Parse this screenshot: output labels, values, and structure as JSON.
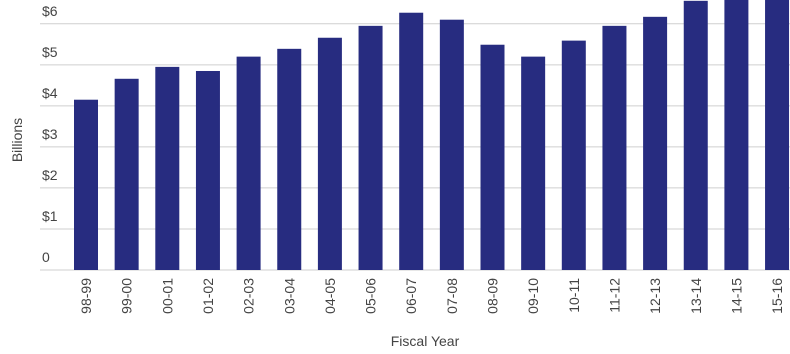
{
  "chart_data": {
    "type": "bar",
    "y_label": "Billions",
    "x_label": "Fiscal Year",
    "categories": [
      "98-99",
      "99-00",
      "00-01",
      "01-02",
      "02-03",
      "03-04",
      "04-05",
      "05-06",
      "06-07",
      "07-08",
      "08-09",
      "09-10",
      "10-11",
      "11-12",
      "12-13",
      "13-14",
      "14-15",
      "15-16"
    ],
    "values": [
      4.15,
      4.66,
      4.95,
      4.85,
      5.2,
      5.39,
      5.66,
      5.95,
      6.27,
      6.1,
      5.49,
      5.2,
      5.59,
      5.95,
      6.17,
      6.56,
      6.8,
      6.9
    ],
    "color": "#272c80",
    "ylim": [
      0,
      6.58
    ],
    "yticks": [
      0,
      {
        "value": 1,
        "label": "$1"
      },
      {
        "value": 2,
        "label": "$2"
      },
      {
        "value": 3,
        "label": "$3"
      },
      {
        "value": 4,
        "label": "$4"
      },
      {
        "value": 5,
        "label": "$5"
      },
      {
        "value": 6,
        "label": "$6"
      }
    ],
    "grid": true
  }
}
